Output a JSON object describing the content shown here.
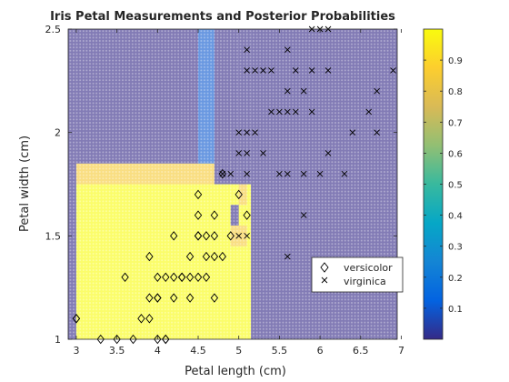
{
  "chart_data": {
    "type": "scatter",
    "title": "Iris Petal Measurements and Posterior Probabilities",
    "xlabel": "Petal length (cm)",
    "ylabel": "Petal width (cm)",
    "xlim": [
      2.9,
      6.95
    ],
    "ylim": [
      1.0,
      2.5
    ],
    "x_ticks": [
      "3",
      "3.5",
      "4",
      "4.5",
      "5",
      "5.5",
      "6",
      "6.5",
      "7"
    ],
    "y_ticks": [
      "1",
      "1.5",
      "2",
      "2.5"
    ],
    "grid": false,
    "legend_position": "bottom-right",
    "colorbar": {
      "range": [
        0,
        1
      ],
      "ticks": [
        "0.1",
        "0.2",
        "0.3",
        "0.4",
        "0.5",
        "0.6",
        "0.7",
        "0.8",
        "0.9"
      ],
      "colormap": [
        "#352a87",
        "#0363e1",
        "#1485d4",
        "#06a7c6",
        "#38b99e",
        "#92bf73",
        "#d9ba56",
        "#fcce2e",
        "#f9fb0e"
      ]
    },
    "background_regions": [
      {
        "x0": 2.9,
        "x1": 3.0,
        "y0": 1.0,
        "y1": 2.5,
        "value": 0.0
      },
      {
        "x0": 3.0,
        "x1": 4.5,
        "y0": 1.0,
        "y1": 1.75,
        "value": 1.0
      },
      {
        "x0": 3.0,
        "x1": 4.5,
        "y0": 1.75,
        "y1": 1.85,
        "value": 0.85
      },
      {
        "x0": 3.0,
        "x1": 4.5,
        "y0": 1.85,
        "y1": 2.5,
        "value": 0.0
      },
      {
        "x0": 4.5,
        "x1": 4.9,
        "y0": 1.0,
        "y1": 1.75,
        "value": 1.0
      },
      {
        "x0": 4.5,
        "x1": 4.7,
        "y0": 1.75,
        "y1": 1.85,
        "value": 0.85
      },
      {
        "x0": 4.7,
        "x1": 4.9,
        "y0": 1.75,
        "y1": 1.85,
        "value": 0.0
      },
      {
        "x0": 4.5,
        "x1": 4.7,
        "y0": 1.85,
        "y1": 2.5,
        "value": 0.1
      },
      {
        "x0": 4.7,
        "x1": 4.9,
        "y0": 1.85,
        "y1": 2.5,
        "value": 0.0
      },
      {
        "x0": 4.9,
        "x1": 5.0,
        "y0": 1.0,
        "y1": 1.45,
        "value": 1.0
      },
      {
        "x0": 4.9,
        "x1": 5.0,
        "y0": 1.45,
        "y1": 1.55,
        "value": 0.85
      },
      {
        "x0": 4.9,
        "x1": 5.0,
        "y0": 1.55,
        "y1": 1.65,
        "value": 0.0
      },
      {
        "x0": 4.9,
        "x1": 5.0,
        "y0": 1.65,
        "y1": 1.75,
        "value": 1.0
      },
      {
        "x0": 4.9,
        "x1": 5.0,
        "y0": 1.75,
        "y1": 2.5,
        "value": 0.0
      },
      {
        "x0": 5.0,
        "x1": 5.1,
        "y0": 1.0,
        "y1": 1.45,
        "value": 1.0
      },
      {
        "x0": 5.0,
        "x1": 5.1,
        "y0": 1.45,
        "y1": 1.55,
        "value": 0.85
      },
      {
        "x0": 5.0,
        "x1": 5.1,
        "y0": 1.55,
        "y1": 1.65,
        "value": 1.0
      },
      {
        "x0": 5.0,
        "x1": 5.1,
        "y0": 1.65,
        "y1": 1.75,
        "value": 0.85
      },
      {
        "x0": 5.0,
        "x1": 5.1,
        "y0": 1.75,
        "y1": 2.5,
        "value": 0.0
      },
      {
        "x0": 5.1,
        "x1": 5.15,
        "y0": 1.0,
        "y1": 1.75,
        "value": 1.0
      },
      {
        "x0": 5.1,
        "x1": 5.15,
        "y0": 1.75,
        "y1": 2.5,
        "value": 0.0
      },
      {
        "x0": 5.15,
        "x1": 6.95,
        "y0": 1.0,
        "y1": 2.5,
        "value": 0.0
      }
    ],
    "series": [
      {
        "name": "versicolor",
        "marker": "diamond",
        "points": [
          [
            3.0,
            1.1
          ],
          [
            3.3,
            1.0
          ],
          [
            3.5,
            1.0
          ],
          [
            3.7,
            1.0
          ],
          [
            4.0,
            1.0
          ],
          [
            4.1,
            1.0
          ],
          [
            3.6,
            1.3
          ],
          [
            3.8,
            1.1
          ],
          [
            3.9,
            1.1
          ],
          [
            3.9,
            1.4
          ],
          [
            3.9,
            1.2
          ],
          [
            4.0,
            1.2
          ],
          [
            4.0,
            1.3
          ],
          [
            4.1,
            1.3
          ],
          [
            4.2,
            1.3
          ],
          [
            4.3,
            1.3
          ],
          [
            4.4,
            1.3
          ],
          [
            4.5,
            1.3
          ],
          [
            4.6,
            1.3
          ],
          [
            4.4,
            1.2
          ],
          [
            4.0,
            1.2
          ],
          [
            4.2,
            1.2
          ],
          [
            4.4,
            1.4
          ],
          [
            4.5,
            1.5
          ],
          [
            4.5,
            1.6
          ],
          [
            4.6,
            1.4
          ],
          [
            4.6,
            1.5
          ],
          [
            4.7,
            1.4
          ],
          [
            4.7,
            1.5
          ],
          [
            4.7,
            1.6
          ],
          [
            4.7,
            1.2
          ],
          [
            4.8,
            1.4
          ],
          [
            4.8,
            1.8
          ],
          [
            4.9,
            1.5
          ],
          [
            5.0,
            1.7
          ],
          [
            5.1,
            1.6
          ],
          [
            4.5,
            1.7
          ],
          [
            3.0,
            1.1
          ],
          [
            4.1,
            1.0
          ],
          [
            4.3,
            1.3
          ],
          [
            4.5,
            1.5
          ],
          [
            4.2,
            1.5
          ]
        ]
      },
      {
        "name": "virginica",
        "marker": "x",
        "points": [
          [
            5.1,
            2.4
          ],
          [
            5.6,
            2.4
          ],
          [
            5.9,
            2.5
          ],
          [
            6.0,
            2.5
          ],
          [
            6.1,
            2.5
          ],
          [
            5.1,
            2.3
          ],
          [
            5.2,
            2.3
          ],
          [
            5.3,
            2.3
          ],
          [
            5.4,
            2.3
          ],
          [
            5.7,
            2.3
          ],
          [
            5.9,
            2.3
          ],
          [
            6.1,
            2.3
          ],
          [
            6.9,
            2.3
          ],
          [
            5.6,
            2.2
          ],
          [
            5.8,
            2.2
          ],
          [
            6.7,
            2.2
          ],
          [
            5.4,
            2.1
          ],
          [
            5.5,
            2.1
          ],
          [
            5.6,
            2.1
          ],
          [
            5.7,
            2.1
          ],
          [
            5.9,
            2.1
          ],
          [
            6.6,
            2.1
          ],
          [
            5.0,
            2.0
          ],
          [
            5.1,
            2.0
          ],
          [
            5.2,
            2.0
          ],
          [
            6.4,
            2.0
          ],
          [
            6.7,
            2.0
          ],
          [
            5.0,
            1.9
          ],
          [
            5.1,
            1.9
          ],
          [
            5.3,
            1.9
          ],
          [
            6.1,
            1.9
          ],
          [
            4.8,
            1.8
          ],
          [
            4.9,
            1.8
          ],
          [
            5.1,
            1.8
          ],
          [
            5.5,
            1.8
          ],
          [
            5.6,
            1.8
          ],
          [
            5.8,
            1.8
          ],
          [
            6.0,
            1.8
          ],
          [
            6.3,
            1.8
          ],
          [
            5.0,
            1.5
          ],
          [
            5.1,
            1.5
          ],
          [
            5.6,
            1.4
          ],
          [
            5.8,
            1.6
          ]
        ]
      }
    ]
  }
}
